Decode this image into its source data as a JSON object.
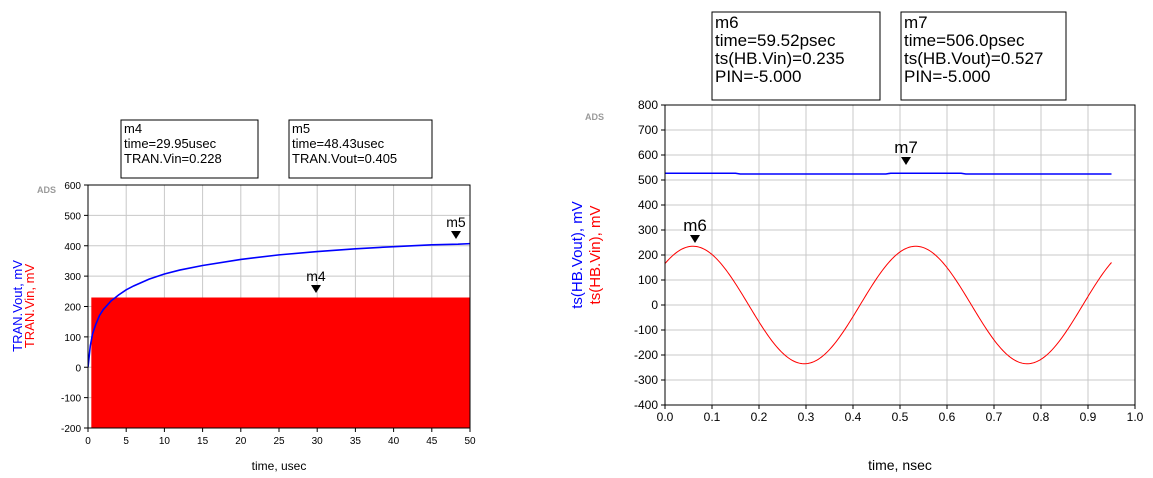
{
  "chart_data": [
    {
      "type": "line",
      "watermark": "ADS",
      "xlabel": "time, usec",
      "ylabels": [
        {
          "text": "TRAN.Vout, mV",
          "color": "#0000ff"
        },
        {
          "text": "TRAN.Vin, mV",
          "color": "#ff0000"
        }
      ],
      "xlim": [
        0,
        50
      ],
      "ylim": [
        -200,
        600
      ],
      "xticks": [
        0,
        5,
        10,
        15,
        20,
        25,
        30,
        35,
        40,
        45,
        50
      ],
      "yticks": [
        -200,
        -100,
        0,
        100,
        200,
        300,
        400,
        500,
        600
      ],
      "grid": true,
      "series": [
        {
          "color": "#0000ff",
          "style": "line",
          "x": [
            0,
            0.3,
            0.6,
            1,
            1.5,
            2,
            3,
            4,
            5,
            6,
            8,
            10,
            12,
            15,
            20,
            25,
            30,
            35,
            40,
            45,
            48.43,
            50
          ],
          "y": [
            0,
            70,
            110,
            140,
            170,
            190,
            218,
            238,
            255,
            268,
            290,
            307,
            320,
            335,
            355,
            370,
            381,
            390,
            397,
            403,
            405,
            407
          ]
        },
        {
          "color": "#ff0000",
          "style": "band",
          "x": [
            0.5,
            50
          ],
          "ymin": [
            -200,
            -200
          ],
          "ymax": [
            228,
            228
          ]
        }
      ],
      "markers": [
        {
          "name": "m4",
          "x": 29.95,
          "y": 228,
          "lines": [
            "m4",
            "time=29.95usec",
            "TRAN.Vin=0.228"
          ]
        },
        {
          "name": "m5",
          "x": 48.43,
          "y": 405,
          "lines": [
            "m5",
            "time=48.43usec",
            "TRAN.Vout=0.405"
          ]
        }
      ]
    },
    {
      "type": "line",
      "watermark": "ADS",
      "xlabel": "time, nsec",
      "ylabels": [
        {
          "text": "ts(HB.Vout), mV",
          "color": "#0000ff"
        },
        {
          "text": "ts(HB.Vin), mV",
          "color": "#ff0000"
        }
      ],
      "xlim": [
        0,
        1.0
      ],
      "ylim": [
        -400,
        800
      ],
      "xticks": [
        "0.0",
        "0.1",
        "0.2",
        "0.3",
        "0.4",
        "0.5",
        "0.6",
        "0.7",
        "0.8",
        "0.9",
        "1.0"
      ],
      "yticks": [
        -400,
        -300,
        -200,
        -100,
        0,
        100,
        200,
        300,
        400,
        500,
        600,
        700,
        800
      ],
      "grid": true,
      "series": [
        {
          "color": "#0000ff",
          "style": "line",
          "x": [
            0,
            0.15,
            0.16,
            0.47,
            0.48,
            0.63,
            0.64,
            0.95
          ],
          "y": [
            527,
            527,
            524,
            524,
            527,
            527,
            524,
            524
          ]
        },
        {
          "color": "#ff0000",
          "style": "sine",
          "x0": 0,
          "x1": 0.95,
          "amplitude": 235,
          "period": 0.474,
          "phase_peak": 0.0595
        }
      ],
      "markers": [
        {
          "name": "m6",
          "x": 0.05952,
          "y": 235,
          "lines": [
            "m6",
            "time=59.52psec",
            "ts(HB.Vin)=0.235",
            "PIN=-5.000"
          ]
        },
        {
          "name": "m7",
          "x": 0.506,
          "y": 527,
          "lines": [
            "m7",
            "time=506.0psec",
            "ts(HB.Vout)=0.527",
            "PIN=-5.000"
          ]
        }
      ]
    }
  ]
}
